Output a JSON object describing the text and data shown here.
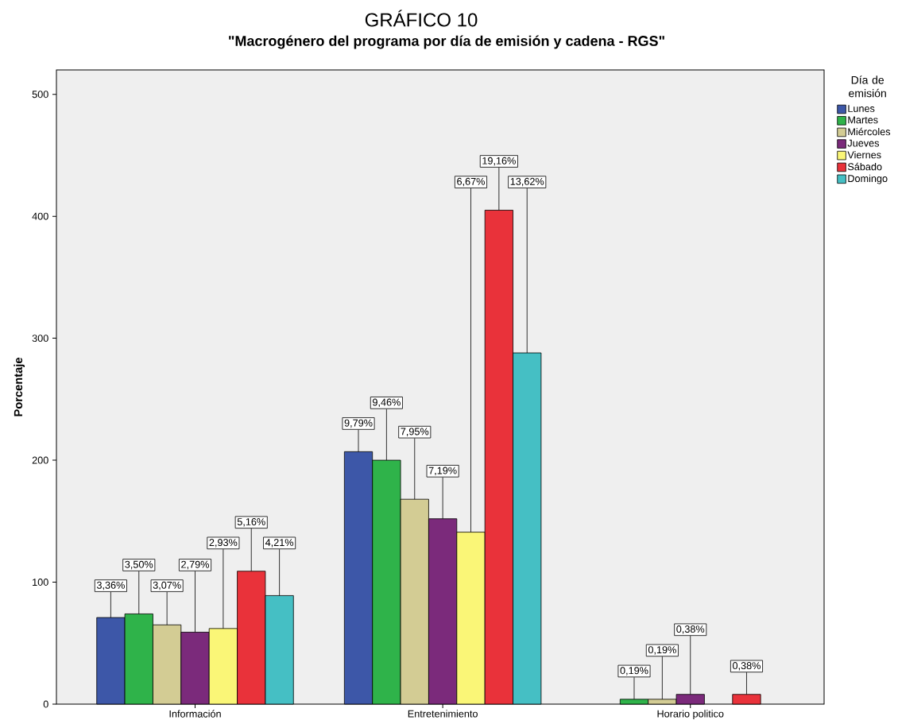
{
  "chart_data": {
    "type": "bar",
    "title": "GRÁFICO 10",
    "subtitle": "\"Macrogénero del programa por día de emisión y cadena - RGS\"",
    "ylabel": "Porcentaje",
    "legend_title": "Día de emisión",
    "categories": [
      "Información",
      "Entretenimiento",
      "Horario politico"
    ],
    "series": [
      {
        "name": "Lunes",
        "color": "#3d57a8",
        "values": [
          71,
          207,
          null
        ]
      },
      {
        "name": "Martes",
        "color": "#2fb34a",
        "values": [
          74,
          200,
          4
        ]
      },
      {
        "name": "Miércoles",
        "color": "#d3cc94",
        "values": [
          65,
          168,
          4
        ]
      },
      {
        "name": "Jueves",
        "color": "#7b2a7b",
        "values": [
          59,
          152,
          8
        ]
      },
      {
        "name": "Viernes",
        "color": "#faf677",
        "values": [
          62,
          141,
          null
        ]
      },
      {
        "name": "Sábado",
        "color": "#e9323a",
        "values": [
          109,
          405,
          8
        ]
      },
      {
        "name": "Domingo",
        "color": "#45bfc4",
        "values": [
          89,
          288,
          null
        ]
      }
    ],
    "annotations": [
      {
        "text": "3,36%",
        "y": 71
      },
      {
        "text": "3,50%",
        "y": 74
      },
      {
        "text": "3,07%",
        "y": 65
      },
      {
        "text": "2,79%",
        "y": 59
      },
      {
        "text": "2,93%",
        "y": 62
      },
      {
        "text": "5,16%",
        "y": 109
      },
      {
        "text": "4,21%",
        "y": 89
      },
      {
        "text": "9,79%",
        "y": 207
      },
      {
        "text": "9,46%",
        "y": 200
      },
      {
        "text": "7,95%",
        "y": 168
      },
      {
        "text": "7,19%",
        "y": 152
      },
      {
        "text": "6,67%",
        "y": 141
      },
      {
        "text": "19,16%",
        "y": 405
      },
      {
        "text": "13,62%",
        "y": 288
      },
      {
        "text": "0,19%",
        "y": 4
      },
      {
        "text": "0,19%",
        "y": 4
      },
      {
        "text": "0,38%",
        "y": 8
      },
      {
        "text": "0,38%",
        "y": 8
      }
    ],
    "ylim": [
      0,
      520
    ],
    "yticks": [
      0,
      100,
      200,
      300,
      400,
      500
    ],
    "legend": "right"
  }
}
